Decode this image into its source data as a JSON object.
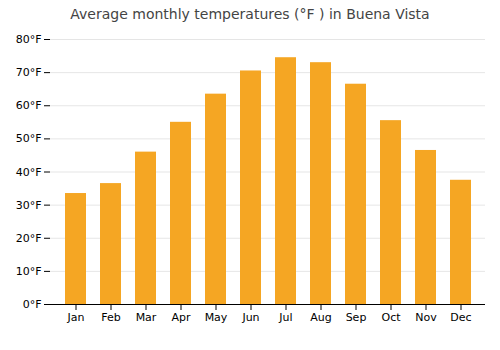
{
  "chart_data": {
    "type": "bar",
    "title": "Average monthly temperatures (°F ) in Buena Vista",
    "categories": [
      "Jan",
      "Feb",
      "Mar",
      "Apr",
      "May",
      "Jun",
      "Jul",
      "Aug",
      "Sep",
      "Oct",
      "Nov",
      "Dec"
    ],
    "values": [
      33.5,
      36.5,
      46,
      55,
      63.5,
      70.5,
      74.5,
      73,
      66.5,
      55.5,
      46.5,
      37.5
    ],
    "color": "#F5A623",
    "ylim": [
      0,
      80
    ],
    "yticks": [
      {
        "value": 0,
        "label": "0°F"
      },
      {
        "value": 10,
        "label": "10°F"
      },
      {
        "value": 20,
        "label": "20°F"
      },
      {
        "value": 30,
        "label": "30°F"
      },
      {
        "value": 40,
        "label": "40°F"
      },
      {
        "value": 50,
        "label": "50°F"
      },
      {
        "value": 60,
        "label": "60°F"
      },
      {
        "value": 70,
        "label": "70°F"
      },
      {
        "value": 80,
        "label": "80°F"
      }
    ],
    "grid": true
  }
}
